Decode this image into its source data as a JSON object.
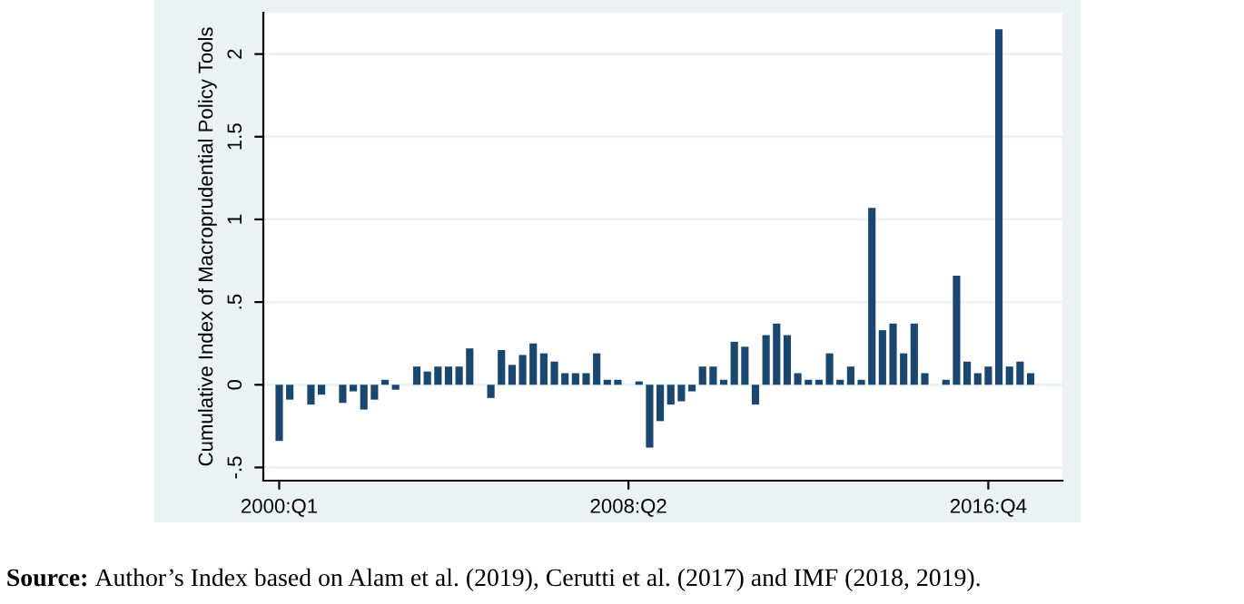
{
  "chart_data": {
    "type": "bar",
    "ylabel": "Cumulative Index of Macroprudential Policy Tools",
    "categories": [
      "2000:Q1",
      null,
      null,
      null,
      null,
      null,
      null,
      null,
      null,
      null,
      null,
      null,
      null,
      null,
      null,
      null,
      null,
      null,
      null,
      null,
      null,
      null,
      null,
      null,
      null,
      null,
      null,
      null,
      null,
      null,
      null,
      null,
      null,
      "2008:Q2",
      null,
      null,
      null,
      null,
      null,
      null,
      null,
      null,
      null,
      null,
      null,
      null,
      null,
      null,
      null,
      null,
      null,
      null,
      null,
      null,
      null,
      null,
      null,
      null,
      null,
      null,
      null,
      null,
      null,
      null,
      null,
      null,
      null,
      "2016:Q4",
      null,
      null,
      null,
      null
    ],
    "values": [
      -0.34,
      -0.09,
      null,
      -0.12,
      -0.06,
      null,
      -0.11,
      -0.04,
      -0.15,
      -0.09,
      0.03,
      -0.03,
      null,
      0.11,
      0.08,
      0.11,
      0.11,
      0.11,
      0.22,
      null,
      -0.08,
      0.21,
      0.12,
      0.18,
      0.25,
      0.19,
      0.14,
      0.07,
      0.07,
      0.07,
      0.19,
      0.03,
      0.03,
      null,
      0.02,
      -0.38,
      -0.22,
      -0.12,
      -0.1,
      -0.04,
      0.11,
      0.11,
      0.03,
      0.26,
      0.23,
      -0.12,
      0.3,
      0.37,
      0.3,
      0.07,
      0.03,
      0.03,
      0.19,
      0.03,
      0.11,
      0.03,
      1.07,
      0.33,
      0.37,
      0.19,
      0.37,
      0.07,
      null,
      0.03,
      0.66,
      0.14,
      0.07,
      0.11,
      2.15,
      0.11,
      0.14,
      0.07
    ],
    "color": "#1a476f",
    "ylim": [
      -0.58,
      2.25
    ],
    "yticks": [
      {
        "value": -0.5,
        "label": "-.5"
      },
      0,
      {
        "value": 0.5,
        "label": ".5"
      },
      1,
      1.5,
      2
    ],
    "grid": "y",
    "annotations": [
      "Source: Author’s Index based on Alam et al. (2019), Cerutti et al. (2017) and IMF (2018, 2019)."
    ]
  }
}
